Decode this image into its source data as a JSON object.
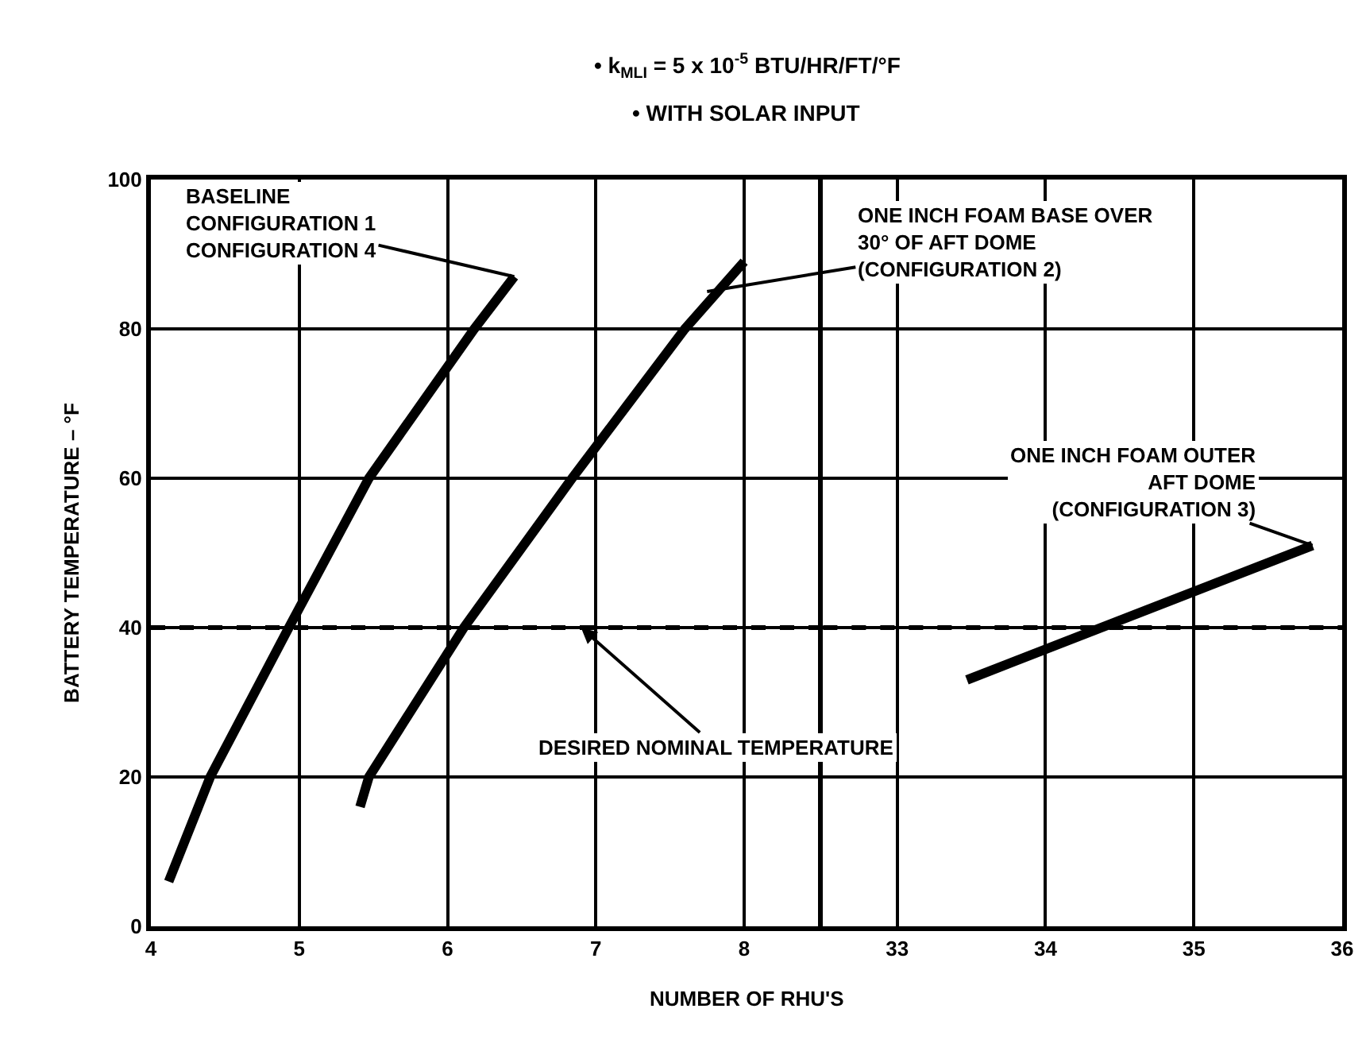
{
  "chart_data": [
    {
      "type": "line",
      "title": "• k$_{MLI}$ = 5 x 10$^{-5}$ BTU/HR/FT/°F",
      "subtitle": "• WITH SOLAR INPUT",
      "xlabel": "NUMBER OF RHU'S",
      "ylabel": "BATTERY TEMPERATURE – °F",
      "xlim": [
        4,
        8.5
      ],
      "xticks": [
        4,
        5,
        6,
        7,
        8
      ],
      "ylim": [
        0,
        100
      ],
      "yticks": [
        0,
        20,
        40,
        60,
        80,
        100
      ],
      "grid": true,
      "marker": "none",
      "line_style": "solid",
      "series": [
        {
          "color": "#000000",
          "x": [
            4.12,
            4.4,
            4.93,
            5.47,
            6.18,
            6.45
          ],
          "values": [
            6,
            20,
            40,
            60,
            80,
            87
          ]
        },
        {
          "color": "#000000",
          "x": [
            5.41,
            5.47,
            6.11,
            6.84,
            7.6,
            8.0
          ],
          "values": [
            16,
            20,
            40,
            60,
            80,
            89
          ]
        }
      ],
      "ref_lines": [
        {
          "axis": "y",
          "value": 40,
          "color": "#000000",
          "line_style": "dashed"
        }
      ],
      "annotations": [
        {
          "text": "BASELINE\nCONFIGURATION 1\nCONFIGURATION 4",
          "x": 6.45,
          "y": 87
        },
        {
          "text": "ONE INCH FOAM BASE OVER\n30° OF AFT DOME\n(CONFIGURATION 2)",
          "x": 7.75,
          "y": 85
        },
        {
          "text": "DESIRED NOMINAL TEMPERATURE",
          "x": 6.9,
          "y": 40
        }
      ]
    },
    {
      "type": "line",
      "xlim": [
        32.5,
        36
      ],
      "xticks": [
        33,
        34,
        35,
        36
      ],
      "ylim": [
        0,
        100
      ],
      "yticks": [
        0,
        20,
        40,
        60,
        80,
        100
      ],
      "grid": true,
      "marker": "none",
      "line_style": "solid",
      "tick_labels": "x",
      "series": [
        {
          "color": "#000000",
          "x": [
            33.47,
            35.8
          ],
          "values": [
            33,
            51
          ]
        }
      ],
      "ref_lines": [
        {
          "axis": "y",
          "value": 40,
          "color": "#000000",
          "line_style": "dashed"
        }
      ],
      "annotations": [
        {
          "text": "ONE INCH FOAM OUTER\nAFT DOME\n(CONFIGURATION 3)",
          "x": 35.8,
          "y": 51
        }
      ]
    }
  ]
}
